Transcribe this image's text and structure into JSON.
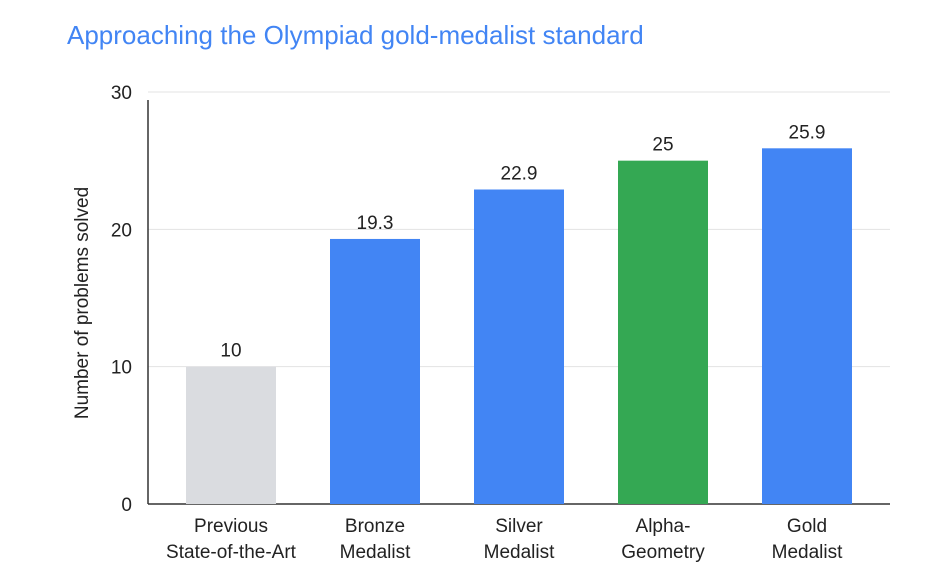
{
  "chart_data": {
    "type": "bar",
    "title": "Approaching the Olympiad gold-medalist standard",
    "ylabel": "Number of problems solved",
    "xlabel": "",
    "ylim": [
      0,
      30
    ],
    "yticks": [
      0,
      10,
      20,
      30
    ],
    "grid": true,
    "categories": [
      [
        "Previous",
        "State-of-the-Art"
      ],
      [
        "Bronze",
        "Medalist"
      ],
      [
        "Silver",
        "Medalist"
      ],
      [
        "Alpha-",
        "Geometry"
      ],
      [
        "Gold",
        "Medalist"
      ]
    ],
    "values": [
      10,
      19.3,
      22.9,
      25,
      25.9
    ],
    "value_labels": [
      "10",
      "19.3",
      "22.9",
      "25",
      "25.9"
    ],
    "colors": [
      "#dadce0",
      "#4285f4",
      "#4285f4",
      "#34a853",
      "#4285f4"
    ],
    "title_color": "#4285f4"
  }
}
